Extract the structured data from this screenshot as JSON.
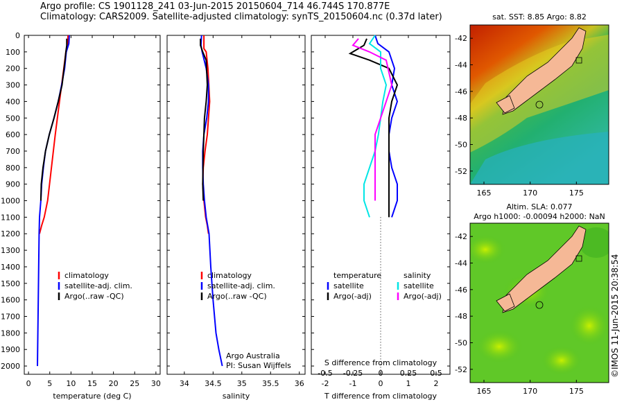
{
  "header": {
    "line1": "Argo profile: CS 1901128_241 03-Jun-2015 20150604_714 46.744S 170.877E",
    "line2": "Climatology: CARS2009. Satellite-adjusted climatology: synTS_20150604.nc (0.37d later)"
  },
  "colors": {
    "climatology": "#ff0000",
    "satellite": "#0000ff",
    "argo": "#000000",
    "sal_satellite": "#00e5e5",
    "sal_argo": "#ff00ff"
  },
  "depth_ticks": [
    0,
    100,
    200,
    300,
    400,
    500,
    600,
    700,
    800,
    900,
    1000,
    1100,
    1200,
    1300,
    1400,
    1500,
    1600,
    1700,
    1800,
    1900,
    2000
  ],
  "chart_data": [
    {
      "type": "line",
      "xlabel": "temperature (deg C)",
      "xlim": [
        -1,
        31
      ],
      "ylim": [
        2050,
        0
      ],
      "xticks": [
        0,
        5,
        10,
        15,
        20,
        25,
        30
      ],
      "legend": [
        "climatology",
        "satellite-adj. clim.",
        "Argo(..raw -QC)"
      ],
      "series": [
        {
          "key": "clim",
          "x": [
            9.3,
            9.2,
            8.8,
            8.3,
            7.3,
            6.3,
            5.4,
            4.5,
            3.7,
            3.1,
            2.6
          ],
          "y": [
            0,
            50,
            100,
            200,
            400,
            600,
            800,
            1000,
            1100,
            1150,
            1200
          ]
        },
        {
          "key": "sat",
          "x": [
            9.6,
            9.5,
            8.9,
            8.5,
            7.8,
            7.0,
            6.0,
            4.9,
            4.0,
            3.5,
            3.1,
            2.9,
            2.6,
            2.5,
            2.4,
            2.3,
            2.2,
            2.1
          ],
          "y": [
            0,
            50,
            100,
            200,
            300,
            400,
            500,
            600,
            700,
            800,
            900,
            1000,
            1100,
            1200,
            1400,
            1600,
            1800,
            2000
          ]
        },
        {
          "key": "argo",
          "x": [
            9.0,
            9.0,
            8.8,
            8.6,
            7.9,
            7.0,
            6.0,
            4.9,
            4.0,
            3.4,
            3.0,
            2.9
          ],
          "y": [
            20,
            60,
            100,
            150,
            300,
            400,
            500,
            600,
            700,
            800,
            900,
            1000
          ]
        }
      ]
    },
    {
      "type": "line",
      "xlabel": "salinity",
      "xlim": [
        33.7,
        36.1
      ],
      "ylim": [
        2050,
        0
      ],
      "xticks": [
        34,
        34.5,
        35,
        35.5,
        36
      ],
      "legend": [
        "climatology",
        "satellite-adj. clim.",
        "Argo(..raw -QC)"
      ],
      "annotation": [
        "Argo Australia",
        "PI: Susan Wijffels"
      ],
      "series": [
        {
          "key": "clim",
          "x": [
            34.34,
            34.34,
            34.38,
            34.41,
            34.44,
            34.4,
            34.36,
            34.33,
            34.32,
            34.34,
            34.37,
            34.4,
            34.42
          ],
          "y": [
            0,
            80,
            100,
            200,
            400,
            600,
            700,
            800,
            900,
            1000,
            1100,
            1150,
            1200
          ]
        },
        {
          "key": "sat",
          "x": [
            34.3,
            34.29,
            34.31,
            34.38,
            34.42,
            34.42,
            34.39,
            34.34,
            34.32,
            34.32,
            34.33,
            34.35,
            34.38,
            34.43,
            34.46,
            34.5,
            34.55,
            34.6,
            34.66
          ],
          "y": [
            0,
            60,
            100,
            200,
            300,
            400,
            500,
            600,
            700,
            800,
            900,
            1000,
            1100,
            1200,
            1400,
            1600,
            1800,
            1900,
            2000
          ]
        },
        {
          "key": "argo",
          "x": [
            34.28,
            34.28,
            34.32,
            34.38,
            34.4,
            34.38,
            34.35,
            34.33,
            34.32,
            34.33
          ],
          "y": [
            20,
            60,
            100,
            150,
            300,
            400,
            500,
            700,
            900,
            1000
          ]
        }
      ]
    },
    {
      "type": "line",
      "xlabel": "T difference from climatology",
      "xlabel_top": "S difference from climatology",
      "xlim": [
        -2.5,
        2.5
      ],
      "ylim": [
        2050,
        0
      ],
      "xticks": [
        -2,
        -1,
        0,
        1,
        2
      ],
      "xticks_top_labels": [
        "-0.5",
        "-0.25",
        "0",
        "0.25",
        "0.5"
      ],
      "legend_left": [
        "temperature",
        "satellite",
        "Argo(-adj)"
      ],
      "legend_right": [
        "salinity",
        "satellite",
        "Argo(-adj)"
      ],
      "series": [
        {
          "key": "t_sat",
          "x": [
            -0.2,
            -0.1,
            0.3,
            0.5,
            0.4,
            0.5,
            0.6,
            0.4,
            0.3,
            0.3,
            0.4,
            0.6,
            0.6,
            0.5,
            0.4
          ],
          "y": [
            0,
            50,
            100,
            200,
            300,
            350,
            400,
            500,
            600,
            700,
            800,
            900,
            1000,
            1050,
            1100
          ]
        },
        {
          "key": "t_argo",
          "x": [
            -0.5,
            -0.6,
            -1.1,
            -0.4,
            0.3,
            0.6,
            0.4,
            0.3,
            0.3,
            0.3,
            0.3,
            0.3,
            0.3,
            0.3
          ],
          "y": [
            20,
            60,
            110,
            150,
            200,
            300,
            400,
            500,
            600,
            700,
            800,
            900,
            1000,
            1100
          ]
        },
        {
          "key": "s_sat",
          "x": [
            -0.05,
            -0.1,
            0.0,
            0.0,
            0.05,
            0.02,
            0.0,
            -0.02,
            -0.05,
            -0.1,
            -0.15,
            -0.15,
            -0.1
          ],
          "y": [
            0,
            50,
            100,
            200,
            300,
            400,
            500,
            600,
            700,
            800,
            900,
            1000,
            1100
          ]
        },
        {
          "key": "s_argo",
          "x": [
            -0.2,
            -0.25,
            -0.1,
            0.05,
            0.1,
            0.05,
            0.0,
            -0.05,
            -0.05,
            -0.05,
            -0.05
          ],
          "y": [
            20,
            60,
            100,
            150,
            300,
            400,
            500,
            600,
            700,
            800,
            1000
          ]
        }
      ]
    },
    {
      "type": "heatmap",
      "title": "sat. SST: 8.85 Argo: 8.82",
      "xlim": [
        163.5,
        178.5
      ],
      "ylim": [
        -53,
        -41
      ],
      "xticks": [
        165,
        170,
        175
      ],
      "yticks": [
        -42,
        -44,
        -46,
        -48,
        -50,
        -52
      ]
    },
    {
      "type": "heatmap",
      "title_line1": "Altim. SLA: 0.077",
      "title_line2": "Argo h1000: -0.00094 h2000: NaN",
      "xlim": [
        163.5,
        178.5
      ],
      "ylim": [
        -53,
        -41
      ],
      "xticks": [
        165,
        170,
        175
      ],
      "yticks": [
        -42,
        -44,
        -46,
        -48,
        -50,
        -52
      ]
    }
  ],
  "credit": "©IMOS 11-Jun-2015 20:38:54"
}
